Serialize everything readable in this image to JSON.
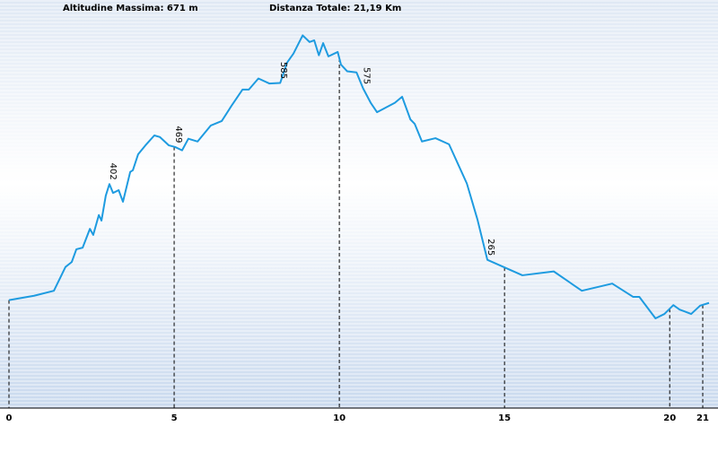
{
  "chart_data": {
    "type": "line",
    "header_left": "Altitudine Massima: 671 m",
    "header_right": "Distanza Totale: 21,19 Km",
    "x": [
      0,
      0.76,
      1.36,
      1.71,
      1.9,
      2.04,
      2.23,
      2.45,
      2.55,
      2.72,
      2.8,
      2.93,
      3.04,
      3.15,
      3.32,
      3.45,
      3.67,
      3.75,
      3.91,
      4.13,
      4.4,
      4.57,
      4.84,
      5.03,
      5.24,
      5.43,
      5.71,
      6.11,
      6.44,
      6.74,
      7.07,
      7.26,
      7.55,
      7.88,
      8.21,
      8.42,
      8.61,
      8.89,
      9.1,
      9.24,
      9.38,
      9.51,
      9.67,
      9.95,
      10.05,
      10.24,
      10.52,
      10.72,
      10.95,
      11.14,
      11.68,
      11.9,
      12.15,
      12.28,
      12.5,
      12.91,
      13.32,
      13.86,
      14.18,
      14.48,
      15.54,
      16.49,
      17.34,
      18.26,
      18.89,
      19.08,
      19.57,
      19.84,
      20.11,
      20.3,
      20.65,
      20.92,
      21.19
    ],
    "values": [
      192,
      200,
      209,
      252,
      261,
      284,
      287,
      321,
      310,
      346,
      336,
      381,
      402,
      386,
      391,
      370,
      424,
      427,
      456,
      472,
      490,
      487,
      472,
      469,
      463,
      484,
      479,
      508,
      516,
      544,
      573,
      573,
      593,
      584,
      585,
      622,
      638,
      671,
      659,
      662,
      635,
      657,
      633,
      641,
      618,
      606,
      604,
      575,
      549,
      532,
      549,
      560,
      519,
      511,
      479,
      485,
      474,
      403,
      338,
      265,
      237,
      244,
      209,
      222,
      198,
      198,
      159,
      167,
      183,
      175,
      167,
      182,
      187
    ],
    "value_labels": [
      null,
      null,
      null,
      null,
      null,
      null,
      null,
      null,
      null,
      null,
      null,
      null,
      "402",
      null,
      null,
      null,
      null,
      null,
      null,
      null,
      null,
      null,
      null,
      "469",
      null,
      null,
      null,
      null,
      null,
      null,
      null,
      null,
      null,
      null,
      "585",
      null,
      null,
      null,
      null,
      null,
      null,
      null,
      null,
      null,
      null,
      null,
      null,
      "575",
      null,
      null,
      null,
      null,
      null,
      null,
      null,
      null,
      null,
      null,
      null,
      "265",
      null,
      null,
      null,
      null,
      null,
      null,
      null,
      null,
      null,
      null,
      null,
      null,
      null
    ],
    "color": "#1e9be0",
    "xlim": [
      0,
      21.19
    ],
    "xticks": [
      0,
      5,
      10,
      15,
      20,
      21
    ],
    "ylim": [
      0,
      735
    ]
  }
}
